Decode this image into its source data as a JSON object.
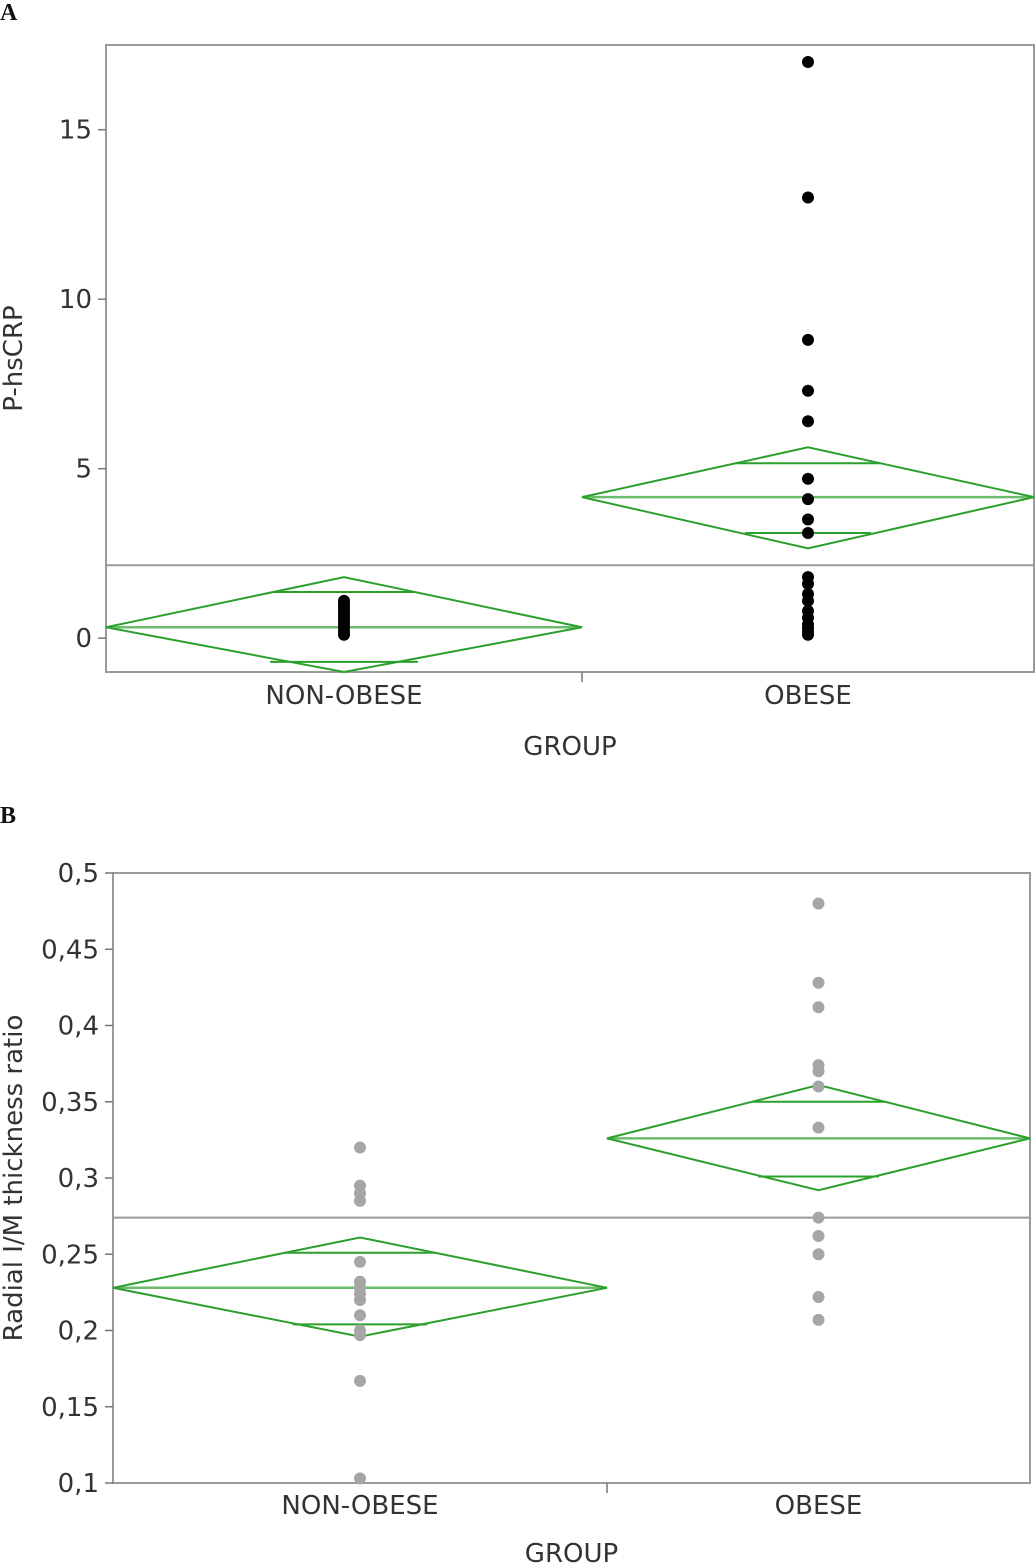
{
  "chart_data": [
    {
      "panel_label": "A",
      "type": "scatter",
      "xlabel": "GROUP",
      "ylabel": "P-hsCRP",
      "categories": [
        "NON-OBESE",
        "OBESE"
      ],
      "yticks": [
        0,
        5,
        10,
        15
      ],
      "ytick_labels": [
        "0",
        "5",
        "10",
        "15"
      ],
      "ylim": [
        -1.0,
        17.5
      ],
      "grand_mean": 2.15,
      "point_color": "#000000",
      "diamond_color": "#2ca02c",
      "means_diamonds": [
        {
          "group": "NON-OBESE",
          "mean": 0.32,
          "upper": 1.8,
          "lower": -1.0,
          "upper_overlap": 1.36,
          "lower_overlap": -0.7
        },
        {
          "group": "OBESE",
          "mean": 4.16,
          "upper": 5.63,
          "lower": 2.65,
          "upper_overlap": 5.16,
          "lower_overlap": 3.1
        }
      ],
      "series": [
        {
          "name": "NON-OBESE",
          "values": [
            1.1,
            1.0,
            0.9,
            0.8,
            0.7,
            0.6,
            0.5,
            0.4,
            0.3,
            0.2,
            0.1
          ]
        },
        {
          "name": "OBESE",
          "values": [
            17.0,
            13.0,
            8.8,
            7.3,
            6.4,
            4.7,
            4.1,
            3.5,
            3.1,
            1.8,
            1.6,
            1.3,
            1.1,
            0.8,
            0.6,
            0.4,
            0.3,
            0.2,
            0.1
          ]
        }
      ]
    },
    {
      "panel_label": "B",
      "type": "scatter",
      "xlabel": "GROUP",
      "ylabel": "Radial I/M thickness ratio",
      "categories": [
        "NON-OBESE",
        "OBESE"
      ],
      "yticks": [
        0.1,
        0.15,
        0.2,
        0.25,
        0.3,
        0.35,
        0.4,
        0.45,
        0.5
      ],
      "ytick_labels": [
        "0,1",
        "0,15",
        "0,2",
        "0,25",
        "0,3",
        "0,35",
        "0,4",
        "0,45",
        "0,5"
      ],
      "ylim": [
        0.1,
        0.5
      ],
      "grand_mean": 0.274,
      "point_color": "#a6a6a6",
      "diamond_color": "#2ca02c",
      "means_diamonds": [
        {
          "group": "NON-OBESE",
          "mean": 0.228,
          "upper": 0.261,
          "lower": 0.196,
          "upper_overlap": 0.251,
          "lower_overlap": 0.204
        },
        {
          "group": "OBESE",
          "mean": 0.326,
          "upper": 0.361,
          "lower": 0.292,
          "upper_overlap": 0.35,
          "lower_overlap": 0.301
        }
      ],
      "series": [
        {
          "name": "NON-OBESE",
          "values": [
            0.32,
            0.295,
            0.29,
            0.285,
            0.245,
            0.232,
            0.228,
            0.224,
            0.22,
            0.21,
            0.2,
            0.197,
            0.167,
            0.103
          ]
        },
        {
          "name": "OBESE",
          "values": [
            0.48,
            0.428,
            0.412,
            0.374,
            0.37,
            0.36,
            0.333,
            0.274,
            0.262,
            0.25,
            0.222,
            0.207
          ]
        }
      ]
    }
  ]
}
